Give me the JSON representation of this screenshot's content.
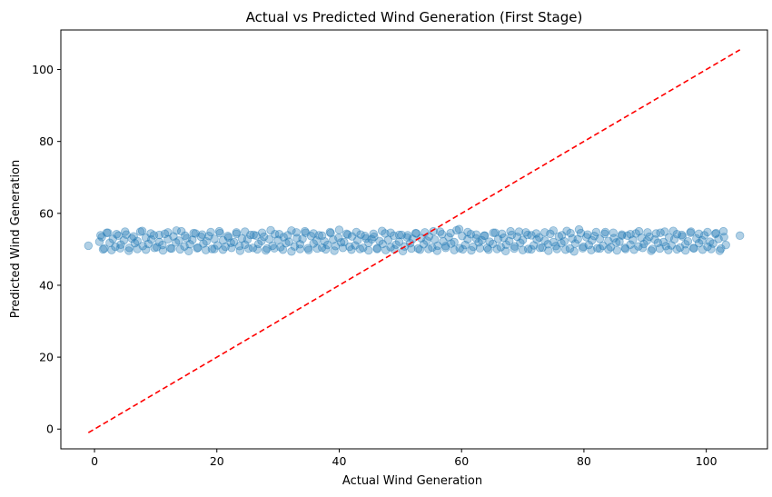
{
  "chart_data": {
    "type": "scatter",
    "title": "Actual vs Predicted Wind Generation (First Stage)",
    "xlabel": "Actual Wind Generation",
    "ylabel": "Predicted Wind Generation",
    "xlim": [
      -5.5,
      110
    ],
    "ylim": [
      -5.5,
      111
    ],
    "xticks": [
      0,
      20,
      40,
      60,
      80,
      100
    ],
    "yticks": [
      0,
      20,
      40,
      60,
      80,
      100
    ],
    "grid": false,
    "point_color": "#1f77b4",
    "point_alpha": 0.35,
    "reference_line": {
      "x": [
        -1,
        105.5
      ],
      "y": [
        -1,
        105.5
      ],
      "color": "#ff0000",
      "style": "dashed"
    },
    "points_x": [
      -1,
      0.8,
      1.2,
      1.6,
      2.0,
      2.5,
      3.0,
      3.4,
      3.9,
      4.3,
      4.8,
      5.2,
      5.7,
      6.1,
      6.6,
      7.0,
      7.5,
      7.9,
      8.4,
      8.8,
      9.3,
      9.7,
      10.2,
      10.6,
      11.1,
      11.5,
      12.0,
      12.4,
      12.9,
      13.3,
      13.8,
      14.2,
      14.7,
      15.1,
      15.6,
      16.0,
      16.5,
      16.9,
      17.4,
      17.8,
      18.3,
      18.7,
      19.2,
      19.6,
      20.1,
      20.5,
      21.0,
      21.4,
      21.9,
      22.3,
      22.8,
      23.2,
      23.7,
      24.1,
      24.6,
      25.0,
      25.5,
      25.9,
      26.4,
      26.8,
      27.3,
      27.7,
      28.2,
      28.6,
      29.1,
      29.5,
      30.0,
      30.4,
      30.9,
      31.3,
      31.8,
      32.2,
      32.7,
      33.1,
      33.6,
      34.0,
      34.5,
      34.9,
      35.4,
      35.8,
      36.3,
      36.7,
      37.2,
      37.6,
      38.1,
      38.5,
      39.0,
      39.4,
      39.9,
      40.3,
      40.8,
      41.2,
      41.7,
      42.1,
      42.6,
      43.0,
      43.5,
      43.9,
      44.4,
      44.8,
      45.3,
      45.7,
      46.2,
      46.6,
      47.1,
      47.5,
      48.0,
      48.4,
      48.9,
      49.3,
      49.8,
      50.2,
      50.7,
      51.1,
      51.6,
      52.0,
      52.5,
      52.9,
      53.4,
      53.8,
      54.3,
      54.7,
      55.2,
      55.6,
      56.1,
      56.5,
      57.0,
      57.4,
      57.9,
      58.3,
      58.8,
      59.2,
      59.7,
      60.1,
      60.6,
      61.0,
      61.5,
      61.9,
      62.4,
      62.8,
      63.3,
      63.7,
      64.2,
      64.6,
      65.1,
      65.5,
      66.0,
      66.4,
      66.9,
      67.3,
      67.8,
      68.2,
      68.7,
      69.1,
      69.6,
      70.0,
      70.5,
      70.9,
      71.4,
      71.8,
      72.3,
      72.7,
      73.2,
      73.6,
      74.1,
      74.5,
      75.0,
      75.4,
      75.9,
      76.3,
      76.8,
      77.2,
      77.7,
      78.1,
      78.6,
      79.0,
      79.5,
      79.9,
      80.4,
      80.8,
      81.3,
      81.7,
      82.2,
      82.6,
      83.1,
      83.5,
      84.0,
      84.4,
      84.9,
      85.3,
      85.8,
      86.2,
      86.7,
      87.1,
      87.6,
      88.0,
      88.5,
      88.9,
      89.4,
      89.8,
      90.3,
      90.7,
      91.2,
      91.6,
      92.1,
      92.5,
      93.0,
      93.4,
      93.9,
      94.3,
      94.8,
      95.2,
      95.7,
      96.1,
      96.6,
      97.0,
      97.5,
      97.9,
      98.4,
      98.8,
      99.3,
      99.7,
      100.2,
      100.6,
      101.1,
      101.5,
      102.0,
      102.4,
      102.9,
      103.2,
      105.5,
      1.0,
      2.2,
      3.6,
      5.0,
      6.4,
      7.8,
      9.2,
      10.6,
      12.0,
      13.4,
      14.8,
      16.2,
      17.6,
      19.0,
      20.4,
      21.8,
      23.2,
      24.6,
      26.0,
      27.4,
      28.8,
      30.2,
      31.6,
      33.0,
      34.4,
      35.8,
      37.2,
      38.6,
      40.0,
      41.4,
      42.8,
      44.2,
      45.6,
      47.0,
      48.4,
      49.8,
      51.2,
      52.6,
      54.0,
      55.4,
      56.8,
      58.2,
      59.6,
      61.0,
      62.4,
      63.8,
      65.2,
      66.6,
      68.0,
      69.4,
      70.8,
      72.2,
      73.6,
      75.0,
      76.4,
      77.8,
      79.2,
      80.6,
      82.0,
      83.4,
      84.8,
      86.2,
      87.6,
      89.0,
      90.4,
      91.8,
      93.2,
      94.6,
      96.0,
      97.4,
      98.8,
      100.2,
      101.6,
      102.8,
      1.4,
      2.8,
      4.2,
      5.6,
      7.0,
      8.4,
      9.8,
      11.2,
      12.6,
      14.0,
      15.4,
      16.8,
      18.2,
      19.6,
      21.0,
      22.4,
      23.8,
      25.2,
      26.6,
      28.0,
      29.4,
      30.8,
      32.2,
      33.6,
      35.0,
      36.4,
      37.8,
      39.2,
      40.6,
      42.0,
      43.4,
      44.8,
      46.2,
      47.6,
      49.0,
      50.4,
      51.8,
      53.2,
      54.6,
      56.0,
      57.4,
      58.8,
      60.2,
      61.6,
      63.0,
      64.4,
      65.8,
      67.2,
      68.6,
      70.0,
      71.4,
      72.8,
      74.2,
      75.6,
      77.0,
      78.4,
      79.8,
      81.2,
      82.6,
      84.0,
      85.4,
      86.8,
      88.2,
      89.6,
      91.0,
      92.4,
      93.8,
      95.2,
      96.6,
      98.0,
      99.4,
      100.8,
      102.2
    ],
    "points_y": [
      51.0,
      52.1,
      53.4,
      50.2,
      54.6,
      51.8,
      52.9,
      50.7,
      53.8,
      51.3,
      52.5,
      54.1,
      50.4,
      53.0,
      51.7,
      52.3,
      54.9,
      50.9,
      53.2,
      51.5,
      52.7,
      53.9,
      50.6,
      52.0,
      51.2,
      54.3,
      52.8,
      50.3,
      53.6,
      51.9,
      52.4,
      55.0,
      50.8,
      53.1,
      51.4,
      52.6,
      54.4,
      50.5,
      53.5,
      51.6,
      52.2,
      53.7,
      50.1,
      52.9,
      51.1,
      54.5,
      52.5,
      50.7,
      53.3,
      51.8,
      52.0,
      54.7,
      50.9,
      53.0,
      51.3,
      52.7,
      54.0,
      50.4,
      53.8,
      51.5,
      52.3,
      53.5,
      50.2,
      52.8,
      51.0,
      54.2,
      52.6,
      50.6,
      53.4,
      51.7,
      52.1,
      55.2,
      50.8,
      53.1,
      51.4,
      52.9,
      54.6,
      50.3,
      53.7,
      51.6,
      52.4,
      53.9,
      50.5,
      52.2,
      51.2,
      54.8,
      52.7,
      50.9,
      53.2,
      51.9,
      52.0,
      54.3,
      50.7,
      53.6,
      51.1,
      52.5,
      54.1,
      50.4,
      53.0,
      51.8,
      52.8,
      53.5,
      50.1,
      52.3,
      51.5,
      54.4,
      52.6,
      50.6,
      53.8,
      51.3,
      52.1,
      54.0,
      50.8,
      53.3,
      51.7,
      52.9,
      54.5,
      50.2,
      53.1,
      51.4,
      52.4,
      53.6,
      50.5,
      52.7,
      51.0,
      54.9,
      52.2,
      50.9,
      53.4,
      51.6,
      52.0,
      55.3,
      50.3,
      53.7,
      51.2,
      52.8,
      54.2,
      50.7,
      53.0,
      51.9,
      52.5,
      53.8,
      50.4,
      52.1,
      51.5,
      54.6,
      52.9,
      50.6,
      53.2,
      51.3,
      52.3,
      54.0,
      50.8,
      53.5,
      51.8,
      52.6,
      54.7,
      50.1,
      53.9,
      51.1,
      52.7,
      53.3,
      50.5,
      52.4,
      51.4,
      54.3,
      52.0,
      50.9,
      53.6,
      51.7,
      52.2,
      55.1,
      50.2,
      53.0,
      51.6,
      52.8,
      54.5,
      50.7,
      53.4,
      51.2,
      52.5,
      53.7,
      50.3,
      52.9,
      51.0,
      54.8,
      52.3,
      50.6,
      53.1,
      51.9,
      52.1,
      54.1,
      50.4,
      53.8,
      51.3,
      52.6,
      54.4,
      50.8,
      53.2,
      51.5,
      52.4,
      53.5,
      50.1,
      52.7,
      51.8,
      54.6,
      52.0,
      50.9,
      53.3,
      51.1,
      52.8,
      54.2,
      50.5,
      53.6,
      51.4,
      52.2,
      54.9,
      50.3,
      53.0,
      51.7,
      52.5,
      53.9,
      50.7,
      52.1,
      51.6,
      54.3,
      52.9,
      50.2,
      53.4,
      51.2,
      53.8,
      53.9,
      54.6,
      54.2,
      54.9,
      53.6,
      55.1,
      54.4,
      54.0,
      54.7,
      55.2,
      53.8,
      54.5,
      54.1,
      54.8,
      55.0,
      53.7,
      54.3,
      54.9,
      54.0,
      54.6,
      55.3,
      54.2,
      53.9,
      54.7,
      55.0,
      54.4,
      53.8,
      54.5,
      55.4,
      54.1,
      54.8,
      53.7,
      54.3,
      55.1,
      54.6,
      54.0,
      53.9,
      54.4,
      54.7,
      55.0,
      54.2,
      54.5,
      55.6,
      54.8,
      54.1,
      53.8,
      54.6,
      54.3,
      55.0,
      54.9,
      54.0,
      54.4,
      54.7,
      55.2,
      53.9,
      54.5,
      55.5,
      54.1,
      54.8,
      54.3,
      54.6,
      53.8,
      54.2,
      55.0,
      54.7,
      54.4,
      54.9,
      55.1,
      54.0,
      54.6,
      54.3,
      54.8,
      54.5,
      55.0,
      50.0,
      49.8,
      50.3,
      49.6,
      50.1,
      49.9,
      50.4,
      49.7,
      50.2,
      50.0,
      49.5,
      50.3,
      49.8,
      50.1,
      49.9,
      50.4,
      49.6,
      50.2,
      50.0,
      49.7,
      50.3,
      49.9,
      49.4,
      50.1,
      49.8,
      50.2,
      50.0,
      49.6,
      50.4,
      49.9,
      50.1,
      49.7,
      50.3,
      49.8,
      50.0,
      49.5,
      50.2,
      49.9,
      50.1,
      49.6,
      50.4,
      49.8,
      50.0,
      49.7,
      50.3,
      49.9,
      50.1,
      49.5,
      50.2,
      49.8,
      50.0,
      50.4,
      49.6,
      50.1,
      49.9,
      49.4,
      50.3,
      49.8,
      50.2,
      50.0,
      49.7,
      50.1,
      49.9,
      50.4,
      49.6,
      50.2,
      49.8,
      50.0,
      49.7,
      50.3,
      49.9,
      50.1,
      49.6
    ]
  }
}
